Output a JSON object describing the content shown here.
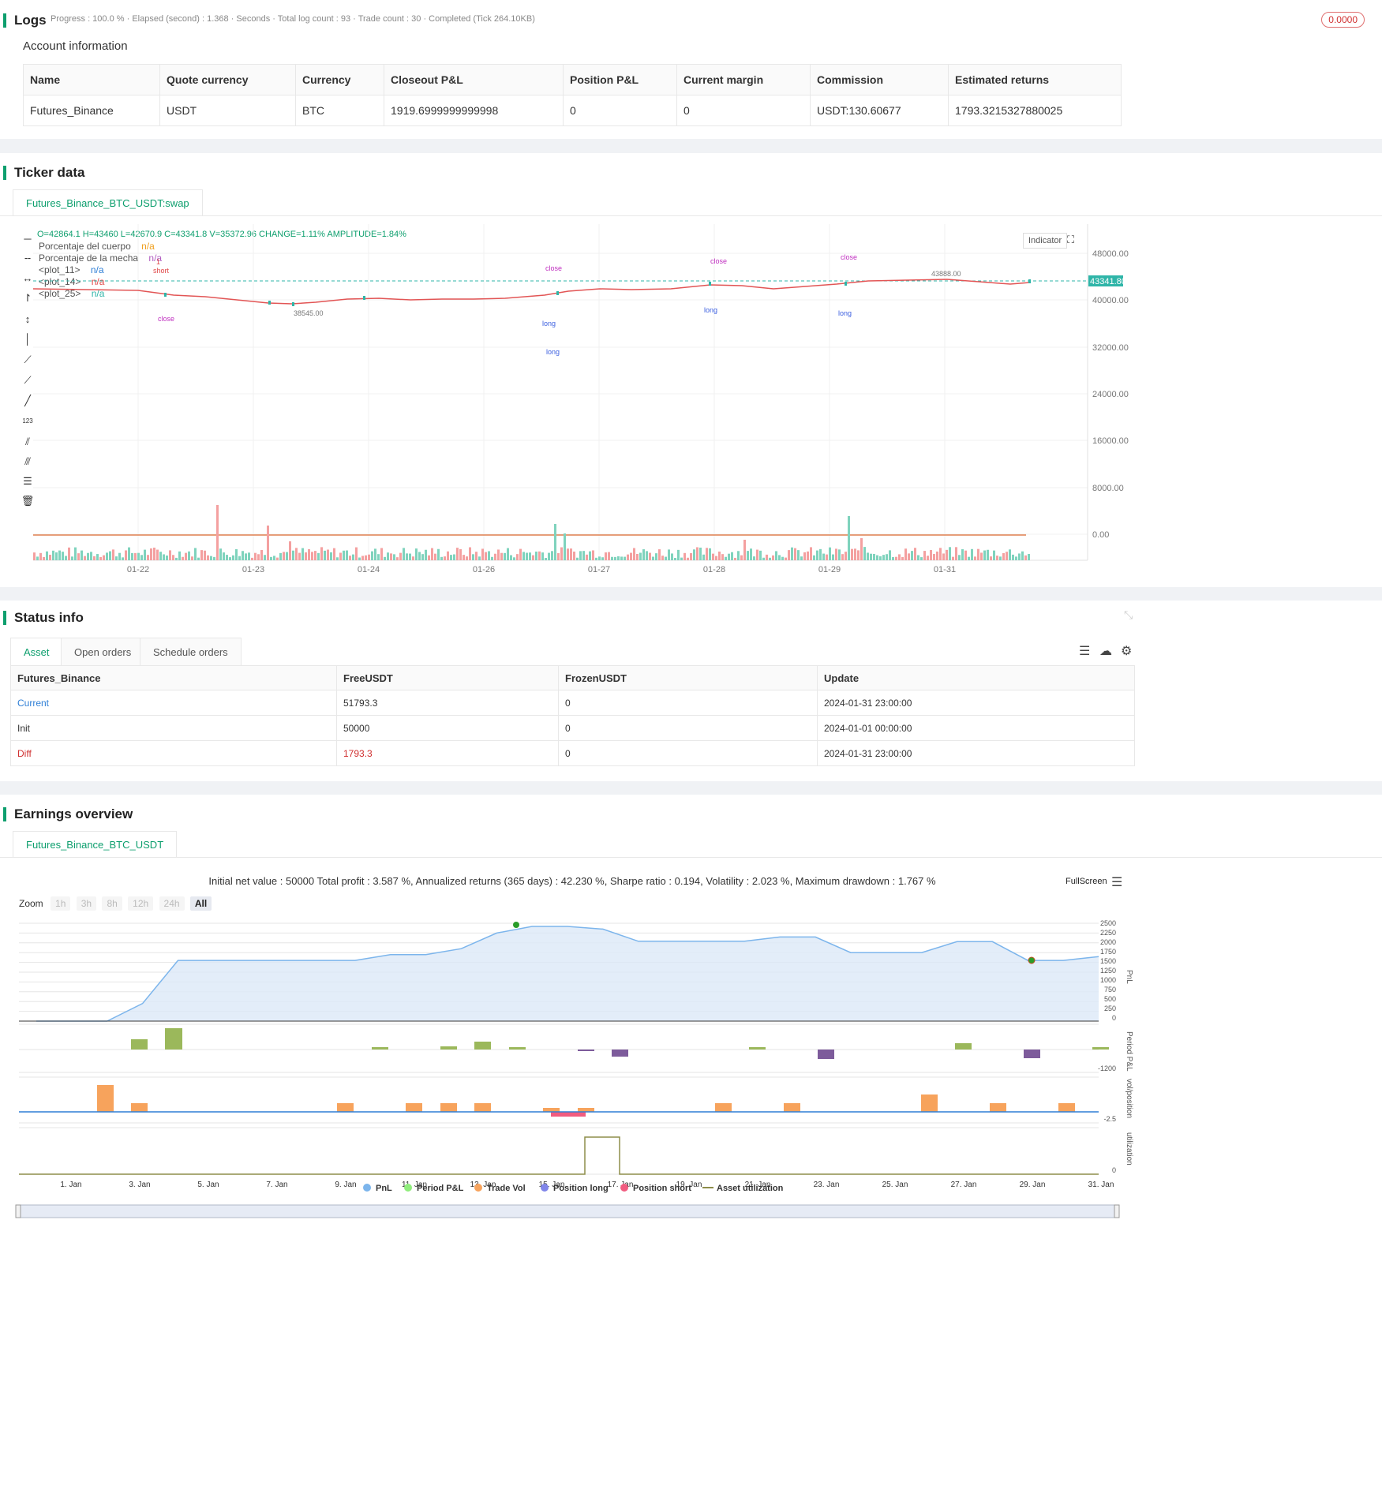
{
  "logs": {
    "title": "Logs",
    "status": "Progress : 100.0 % · Elapsed (second) : 1.368 · Seconds · Total log count : 93 · Trade count : 30 · Completed (Tick 264.10KB)",
    "badge": "0.0000"
  },
  "account": {
    "title": "Account information",
    "headers": [
      "Name",
      "Quote currency",
      "Currency",
      "Closeout P&L",
      "Position P&L",
      "Current margin",
      "Commission",
      "Estimated returns"
    ],
    "row": [
      "Futures_Binance",
      "USDT",
      "BTC",
      "1919.6999999999998",
      "0",
      "0",
      "USDT:130.60677",
      "1793.3215327880025"
    ]
  },
  "ticker": {
    "title": "Ticker data",
    "tab": "Futures_Binance_BTC_USDT:swap",
    "ohlc": "O=42864.1 H=43460 L=42670.9 C=43341.8 V=35372.96 CHANGE=1.11% AMPLITUDE=1.84%",
    "legend": [
      {
        "label": "Porcentaje del cuerpo",
        "value": "n/a",
        "color": "#f0a020"
      },
      {
        "label": "Porcentaje de la mecha",
        "value": "n/a",
        "color": "#b05cc0"
      },
      {
        "label": "<plot_11>",
        "value": "n/a",
        "color": "#2f7fd6"
      },
      {
        "label": "<plot_14>",
        "value": "n/a",
        "color": "#e04848"
      },
      {
        "label": "<plot_25>",
        "value": "n/a",
        "color": "#2fb5a8"
      }
    ],
    "indicator_btn": "Indicator",
    "price_ticks": [
      "48000.00",
      "40000.00",
      "32000.00",
      "24000.00",
      "16000.00",
      "8000.00",
      "0.00"
    ],
    "last_price": "43341.80",
    "x_ticks": [
      "01-22",
      "01-23",
      "01-24",
      "01-26",
      "01-27",
      "01-28",
      "01-29",
      "01-31"
    ],
    "low_label": "38545.00",
    "high_label": "43888.00",
    "markers": {
      "close": "close",
      "long": "long",
      "short": "short",
      "one": "1"
    }
  },
  "status": {
    "title": "Status info",
    "tabs": [
      "Asset",
      "Open orders",
      "Schedule orders"
    ],
    "headers": [
      "Futures_Binance",
      "FreeUSDT",
      "FrozenUSDT",
      "Update"
    ],
    "rows": [
      {
        "name": "Current",
        "free": "51793.3",
        "frozen": "0",
        "update": "2024-01-31 23:00:00"
      },
      {
        "name": "Init",
        "free": "50000",
        "frozen": "0",
        "update": "2024-01-01 00:00:00"
      },
      {
        "name": "Diff",
        "free": "1793.3",
        "frozen": "0",
        "update": "2024-01-31 23:00:00"
      }
    ]
  },
  "earnings": {
    "title": "Earnings overview",
    "tab": "Futures_Binance_BTC_USDT",
    "summary": "Initial net value : 50000 Total profit : 3.587 %, Annualized returns (365 days) : 42.230 %, Sharpe ratio : 0.194, Volatility : 2.023 %, Maximum drawdown : 1.767 %",
    "fullscreen": "FullScreen",
    "zoom_label": "Zoom",
    "zoom_options": [
      "1h",
      "3h",
      "8h",
      "12h",
      "24h",
      "All"
    ],
    "pnl_ticks": [
      "2500",
      "2250",
      "2000",
      "1750",
      "1500",
      "1250",
      "1000",
      "750",
      "500",
      "250",
      "0"
    ],
    "axis_titles": [
      "PnL",
      "Period P&L",
      "vol/position",
      "utilization"
    ],
    "period_tick": "-1200",
    "vol_tick": "-2.5",
    "util_tick": "0",
    "x_ticks": [
      "1. Jan",
      "3. Jan",
      "5. Jan",
      "7. Jan",
      "9. Jan",
      "11. Jan",
      "13. Jan",
      "15. Jan",
      "17. Jan",
      "19. Jan",
      "21. Jan",
      "23. Jan",
      "25. Jan",
      "27. Jan",
      "29. Jan",
      "31. Jan"
    ],
    "legend": [
      {
        "label": "PnL",
        "color": "#7cb5ec"
      },
      {
        "label": "Period P&L",
        "color": "#90ed7d"
      },
      {
        "label": "Trade Vol",
        "color": "#f7a35c"
      },
      {
        "label": "Position long",
        "color": "#8085e9"
      },
      {
        "label": "Position short",
        "color": "#f15c80"
      },
      {
        "label": "Asset utilization",
        "color": "#8d8d4a"
      }
    ]
  },
  "chart_data": {
    "type": "area",
    "x": [
      "1. Jan",
      "2. Jan",
      "3. Jan",
      "4. Jan",
      "5. Jan",
      "6. Jan",
      "7. Jan",
      "8. Jan",
      "9. Jan",
      "10. Jan",
      "11. Jan",
      "12. Jan",
      "13. Jan",
      "14. Jan",
      "15. Jan",
      "16. Jan",
      "17. Jan",
      "18. Jan",
      "19. Jan",
      "20. Jan",
      "21. Jan",
      "22. Jan",
      "23. Jan",
      "24. Jan",
      "25. Jan",
      "26. Jan",
      "27. Jan",
      "28. Jan",
      "29. Jan",
      "30. Jan",
      "31. Jan"
    ],
    "series": [
      {
        "name": "PnL",
        "values": [
          0,
          0,
          0,
          450,
          1550,
          1550,
          1550,
          1550,
          1550,
          1550,
          1700,
          1700,
          1850,
          2250,
          2420,
          2420,
          2350,
          2040,
          2040,
          2040,
          2040,
          2150,
          2150,
          1750,
          1750,
          1750,
          2030,
          2030,
          1550,
          1550,
          1650
        ]
      }
    ],
    "ylim": [
      0,
      2500
    ]
  }
}
